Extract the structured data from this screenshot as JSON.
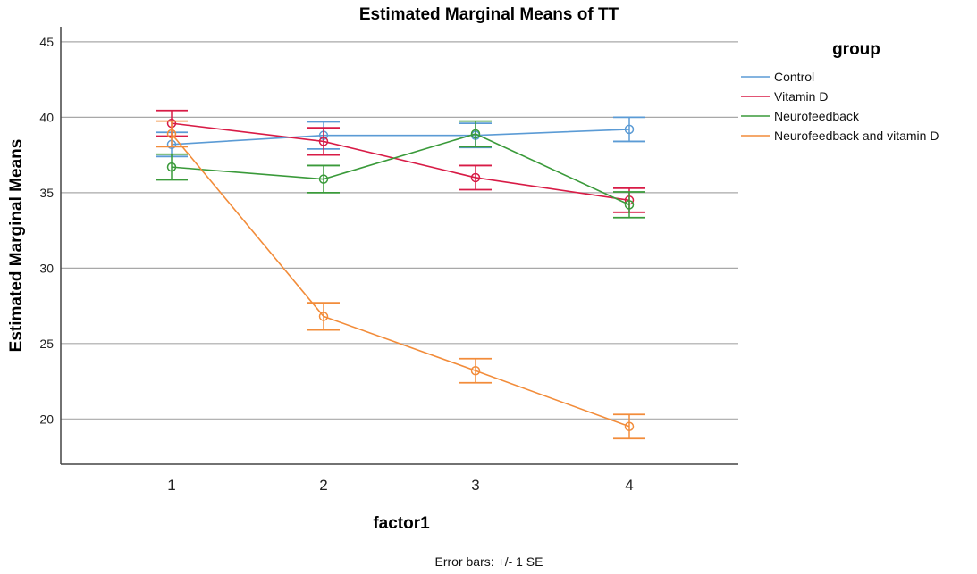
{
  "chart_data": {
    "type": "line",
    "title": "Estimated Marginal Means of TT",
    "xlabel": "factor1",
    "ylabel": "Estimated Marginal Means",
    "x": [
      "1",
      "2",
      "3",
      "4"
    ],
    "ylim": [
      17,
      46
    ],
    "yticks": [
      20,
      25,
      30,
      35,
      40,
      45
    ],
    "grid": true,
    "legend_title": "group",
    "legend_position": "top-right",
    "footnote": "Error bars: +/- 1 SE",
    "series": [
      {
        "name": "Control",
        "color": "#5b9bd5",
        "values": [
          38.2,
          38.8,
          38.8,
          39.2
        ],
        "se": [
          0.8,
          0.9,
          0.8,
          0.8
        ]
      },
      {
        "name": "Vitamin D",
        "color": "#d81b46",
        "values": [
          39.6,
          38.4,
          36.0,
          34.5
        ],
        "se": [
          0.85,
          0.9,
          0.8,
          0.8
        ]
      },
      {
        "name": "Neurofeedback",
        "color": "#3a9a3a",
        "values": [
          36.7,
          35.9,
          38.9,
          34.2
        ],
        "se": [
          0.85,
          0.9,
          0.85,
          0.85
        ]
      },
      {
        "name": "Neurofeedback and vitamin D",
        "color": "#f28c3a",
        "values": [
          38.9,
          26.8,
          23.2,
          19.5
        ],
        "se": [
          0.85,
          0.9,
          0.8,
          0.8
        ]
      }
    ]
  }
}
